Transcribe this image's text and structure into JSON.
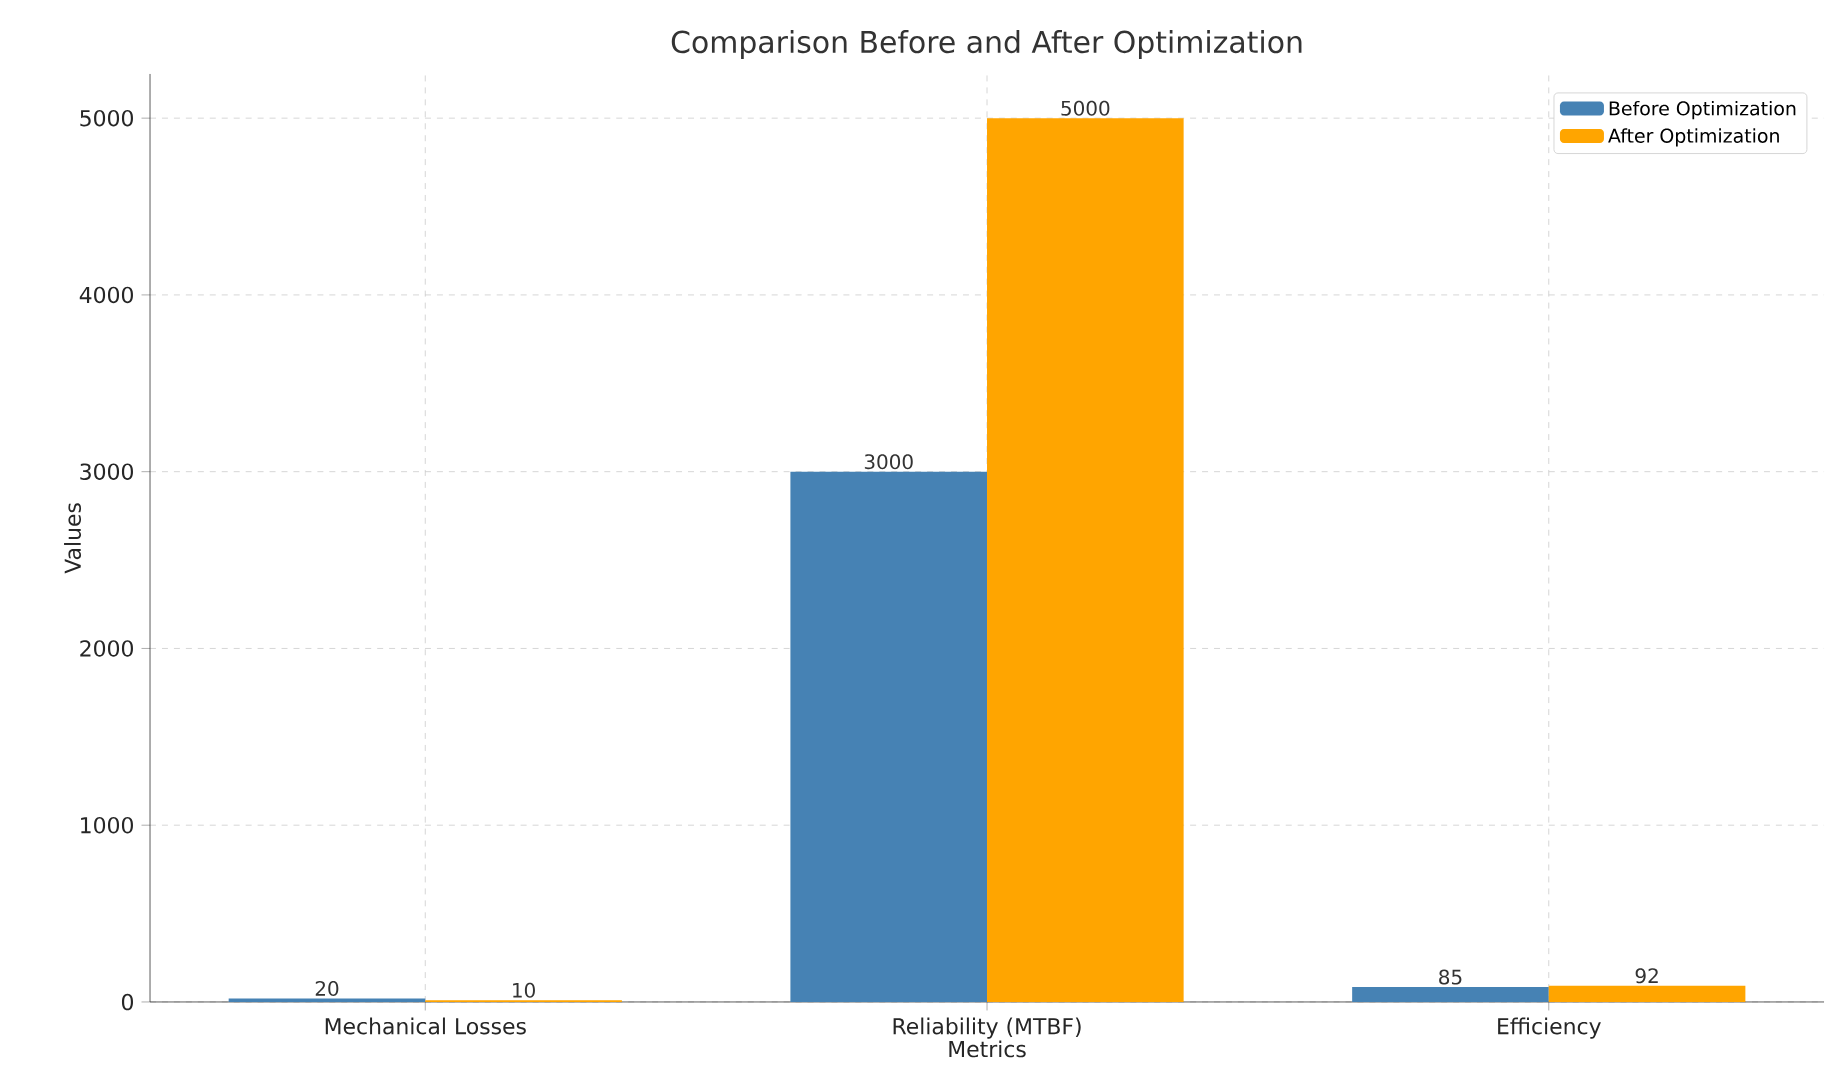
{
  "chart_data": {
    "type": "bar",
    "title": "Comparison Before and After Optimization",
    "xlabel": "Metrics",
    "ylabel": "Values",
    "categories": [
      "Mechanical Losses",
      "Reliability (MTBF)",
      "Efficiency"
    ],
    "series": [
      {
        "name": "Before Optimization",
        "color": "#4682b4",
        "values": [
          20,
          3000,
          85
        ]
      },
      {
        "name": "After Optimization",
        "color": "#ffa500",
        "values": [
          10,
          5000,
          92
        ]
      }
    ],
    "ylim": [
      0,
      5250
    ],
    "yticks": [
      0,
      1000,
      2000,
      3000,
      4000,
      5000
    ],
    "grid": true,
    "legend": "top right",
    "data_labels": true
  }
}
